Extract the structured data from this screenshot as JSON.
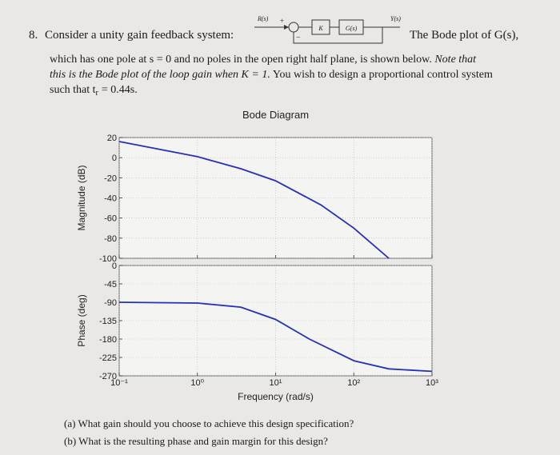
{
  "problem": {
    "number": "8.",
    "intro": "Consider a unity gain feedback system:",
    "after_diagram": "The Bode plot of G(s),",
    "body_lines": [
      [
        "which has one pole at s = 0 and no poles in the open right half plane, is shown below.",
        "Note that"
      ],
      [
        "this is the Bode plot of the loop gain when K = 1.",
        "You wish to design a proportional control system"
      ],
      [
        "such that t",
        "r",
        "= 0.44s."
      ]
    ],
    "questions": [
      "(a) What gain should you choose to achieve this design specification?",
      "(b) What is the resulting phase and gain margin for this design?"
    ]
  },
  "diagram": {
    "input": "R(s)",
    "plus": "+",
    "minus": "−",
    "gain": "K",
    "plant": "G(s)",
    "output": "Y(s)"
  },
  "chart_data": [
    {
      "type": "line",
      "title": "Bode Diagram",
      "ylabel": "Magnitude (dB)",
      "xscale": "log",
      "grid": true,
      "color": "#2431b8",
      "x": [
        0.1,
        1,
        3.6,
        10,
        38,
        100,
        280
      ],
      "values": [
        16,
        1,
        -11,
        -23,
        -47,
        -70,
        -100
      ],
      "xlim": [
        0.1,
        1000
      ],
      "ylim": [
        -100,
        20
      ],
      "yticks": [
        -100,
        -80,
        -60,
        -40,
        -20,
        0,
        20
      ]
    },
    {
      "type": "line",
      "ylabel": "Phase (deg)",
      "xlabel": "Frequency (rad/s)",
      "xscale": "log",
      "grid": true,
      "color": "#2431b8",
      "x": [
        0.1,
        1,
        3.6,
        10,
        27,
        100,
        280,
        1000
      ],
      "values": [
        -90,
        -92,
        -102,
        -132,
        -180,
        -233,
        -253,
        -259
      ],
      "xlim": [
        0.1,
        1000
      ],
      "ylim": [
        -270,
        0
      ],
      "yticks": [
        -270,
        -225,
        -180,
        -135,
        -90,
        -45,
        0
      ],
      "xticks": [
        {
          "value": 0.1,
          "label": "10⁻¹"
        },
        {
          "value": 1,
          "label": "10⁰"
        },
        {
          "value": 10,
          "label": "10¹"
        },
        {
          "value": 100,
          "label": "10²"
        },
        {
          "value": 1000,
          "label": "10³"
        }
      ]
    }
  ]
}
